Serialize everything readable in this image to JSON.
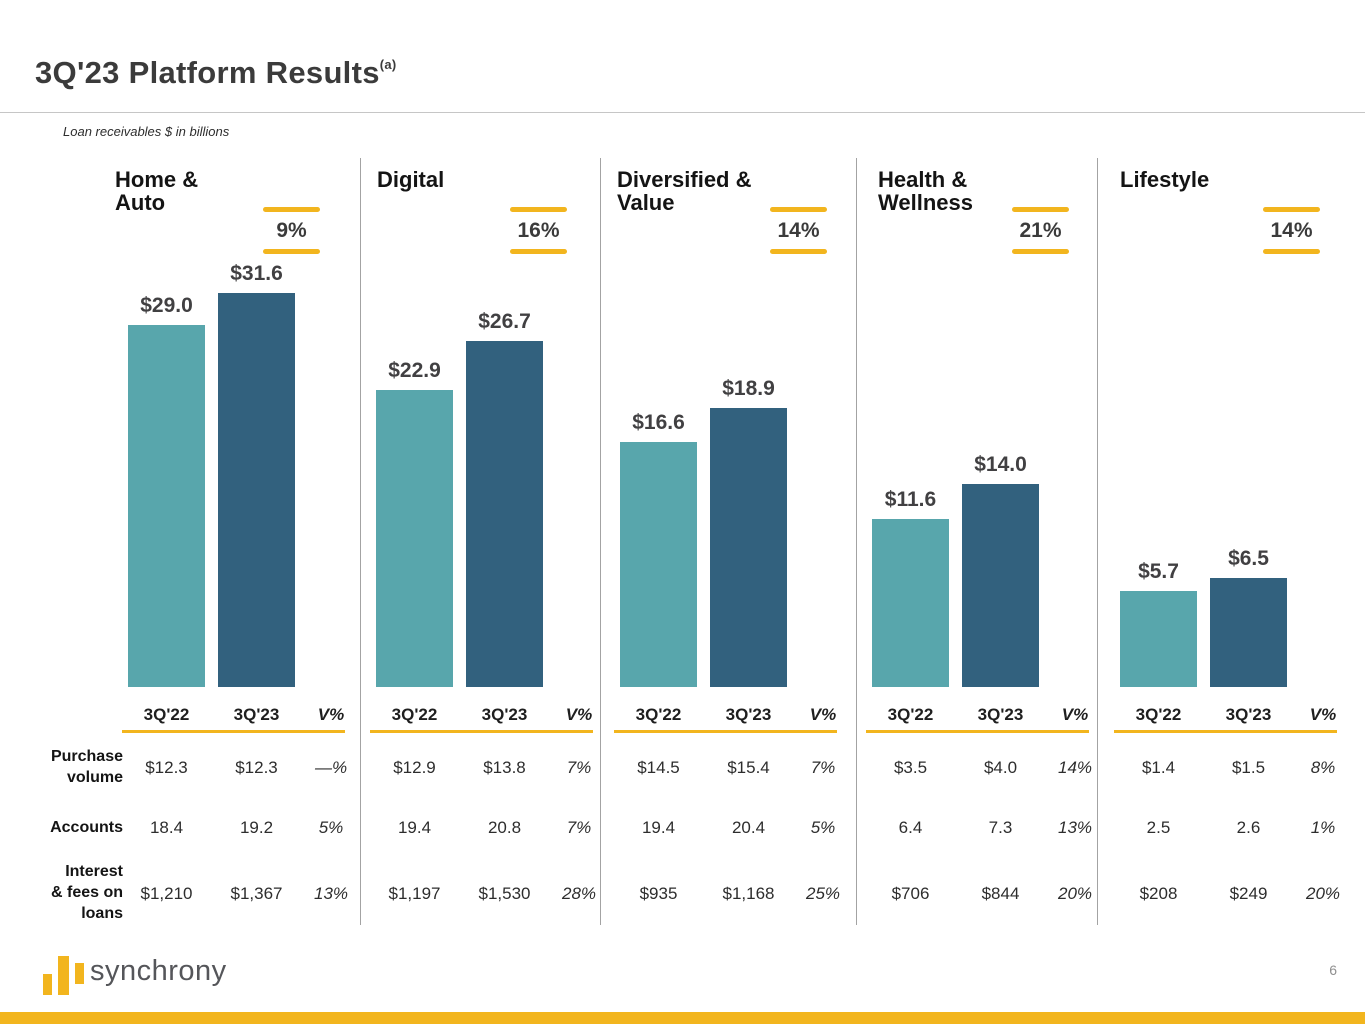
{
  "slide": {
    "title": "3Q'23 Platform Results",
    "title_superscript": "(a)",
    "subtitle": "Loan receivables $ in billions",
    "page_number": "6",
    "logo_text": "synchrony"
  },
  "colors": {
    "teal": "#58A6AC",
    "navy": "#32617E",
    "gold": "#F2B51E"
  },
  "table": {
    "column_headers": [
      "3Q'22",
      "3Q'23",
      "V%"
    ],
    "row_labels": [
      "Purchase\nvolume",
      "Accounts",
      "Interest\n& fees on\nloans"
    ]
  },
  "chart_data": {
    "type": "bar",
    "title": "3Q'23 Platform Results",
    "note": "Loan receivables $ in billions",
    "categories": [
      "3Q'22",
      "3Q'23"
    ],
    "legend_position": "none",
    "grid": false,
    "platforms": [
      {
        "name": "Home &\nAuto",
        "growth": "9%",
        "loan_receivables_billions": [
          29.0,
          31.6
        ],
        "bar_labels": [
          "$29.0",
          "$31.6"
        ],
        "rows": [
          [
            "$12.3",
            "$12.3",
            "—%"
          ],
          [
            "18.4",
            "19.2",
            "5%"
          ],
          [
            "$1,210",
            "$1,367",
            "13%"
          ]
        ]
      },
      {
        "name": "Digital",
        "growth": "16%",
        "loan_receivables_billions": [
          22.9,
          26.7
        ],
        "bar_labels": [
          "$22.9",
          "$26.7"
        ],
        "rows": [
          [
            "$12.9",
            "$13.8",
            "7%"
          ],
          [
            "19.4",
            "20.8",
            "7%"
          ],
          [
            "$1,197",
            "$1,530",
            "28%"
          ]
        ]
      },
      {
        "name": "Diversified &\nValue",
        "growth": "14%",
        "loan_receivables_billions": [
          16.6,
          18.9
        ],
        "bar_labels": [
          "$16.6",
          "$18.9"
        ],
        "rows": [
          [
            "$14.5",
            "$15.4",
            "7%"
          ],
          [
            "19.4",
            "20.4",
            "5%"
          ],
          [
            "$935",
            "$1,168",
            "25%"
          ]
        ]
      },
      {
        "name": "Health &\nWellness",
        "growth": "21%",
        "loan_receivables_billions": [
          11.6,
          14.0
        ],
        "bar_labels": [
          "$11.6",
          "$14.0"
        ],
        "rows": [
          [
            "$3.5",
            "$4.0",
            "14%"
          ],
          [
            "6.4",
            "7.3",
            "13%"
          ],
          [
            "$706",
            "$844",
            "20%"
          ]
        ]
      },
      {
        "name": "Lifestyle",
        "growth": "14%",
        "loan_receivables_billions": [
          5.7,
          6.5
        ],
        "bar_labels": [
          "$5.7",
          "$6.5"
        ],
        "rows": [
          [
            "$1.4",
            "$1.5",
            "8%"
          ],
          [
            "2.5",
            "2.6",
            "1%"
          ],
          [
            "$208",
            "$249",
            "20%"
          ]
        ]
      }
    ]
  }
}
